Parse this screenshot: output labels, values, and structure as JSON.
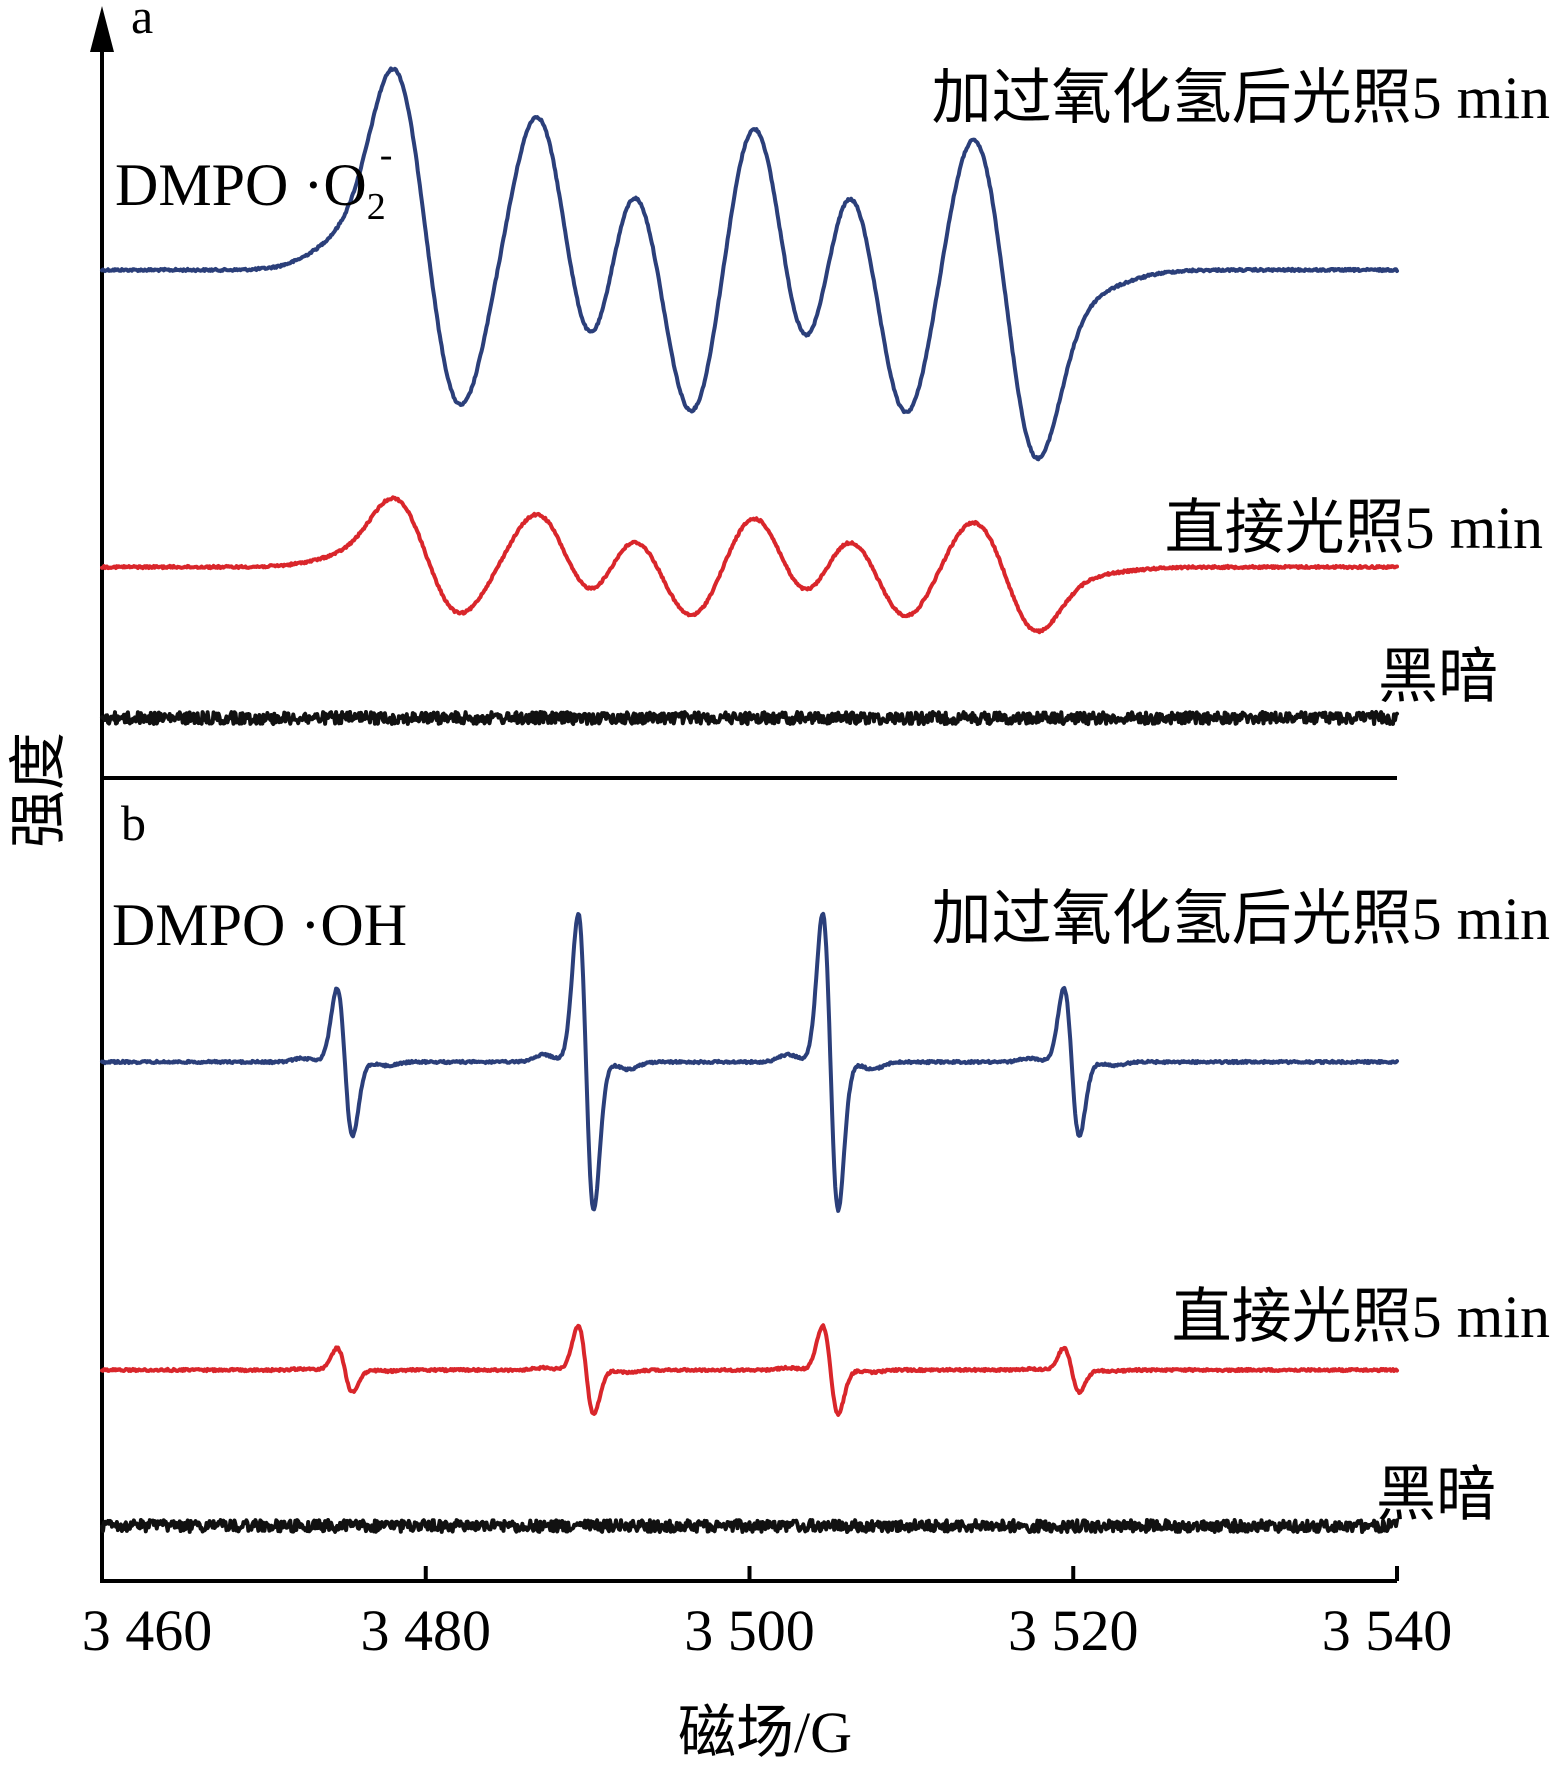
{
  "chart_data": {
    "type": "line",
    "xlabel": "磁场/G",
    "ylabel": "强度",
    "xlim": [
      3460,
      3540
    ],
    "xticks": [
      3460,
      3480,
      3500,
      3520,
      3540
    ],
    "xtick_labels": [
      "3 460",
      "3 480",
      "3 500",
      "3 520",
      "3 540"
    ],
    "colors": {
      "h2o2": "#2b3f7a",
      "light": "#d9262b",
      "dark": "#111111",
      "axis": "#000000"
    },
    "panels": [
      {
        "label": "a",
        "species": "DMPO ·O",
        "species_subscript": "2",
        "species_superscript": "-",
        "series": [
          {
            "name": "加过氧化氢后光照5 min",
            "color": "#2b3f7a",
            "kind": "superoxide",
            "peak_fields": [
              3478.2,
              3487.0,
              3492.6,
              3500.4,
              3506.0,
              3514.0
            ],
            "trough_fields": [
              3482.0,
              3490.4,
              3496.4,
              3503.6,
              3509.6,
              3517.6
            ],
            "relative_amplitude": 1.0
          },
          {
            "name": "直接光照5 min",
            "color": "#d9262b",
            "kind": "superoxide",
            "peak_fields": [
              3478.2,
              3487.0,
              3492.6,
              3500.4,
              3506.0,
              3514.0
            ],
            "trough_fields": [
              3482.0,
              3490.4,
              3496.4,
              3503.6,
              3509.6,
              3517.6
            ],
            "relative_amplitude": 0.34
          },
          {
            "name": "黑暗",
            "color": "#111111",
            "kind": "noise",
            "relative_amplitude": 0.02
          }
        ]
      },
      {
        "label": "b",
        "species": "DMPO ·OH",
        "series": [
          {
            "name": "加过氧化氢后光照5 min",
            "color": "#2b3f7a",
            "kind": "hydroxyl",
            "line_centers": [
              3475.0,
              3489.9,
              3505.0,
              3519.9
            ],
            "relative_intensities": [
              0.5,
              1.0,
              1.0,
              0.5
            ],
            "relative_amplitude": 1.0
          },
          {
            "name": "直接光照5 min",
            "color": "#d9262b",
            "kind": "hydroxyl",
            "line_centers": [
              3475.0,
              3489.9,
              3505.0,
              3519.9
            ],
            "relative_intensities": [
              0.5,
              1.0,
              1.0,
              0.5
            ],
            "relative_amplitude": 0.3
          },
          {
            "name": "黑暗",
            "color": "#111111",
            "kind": "noise",
            "relative_amplitude": 0.02
          }
        ]
      }
    ]
  }
}
